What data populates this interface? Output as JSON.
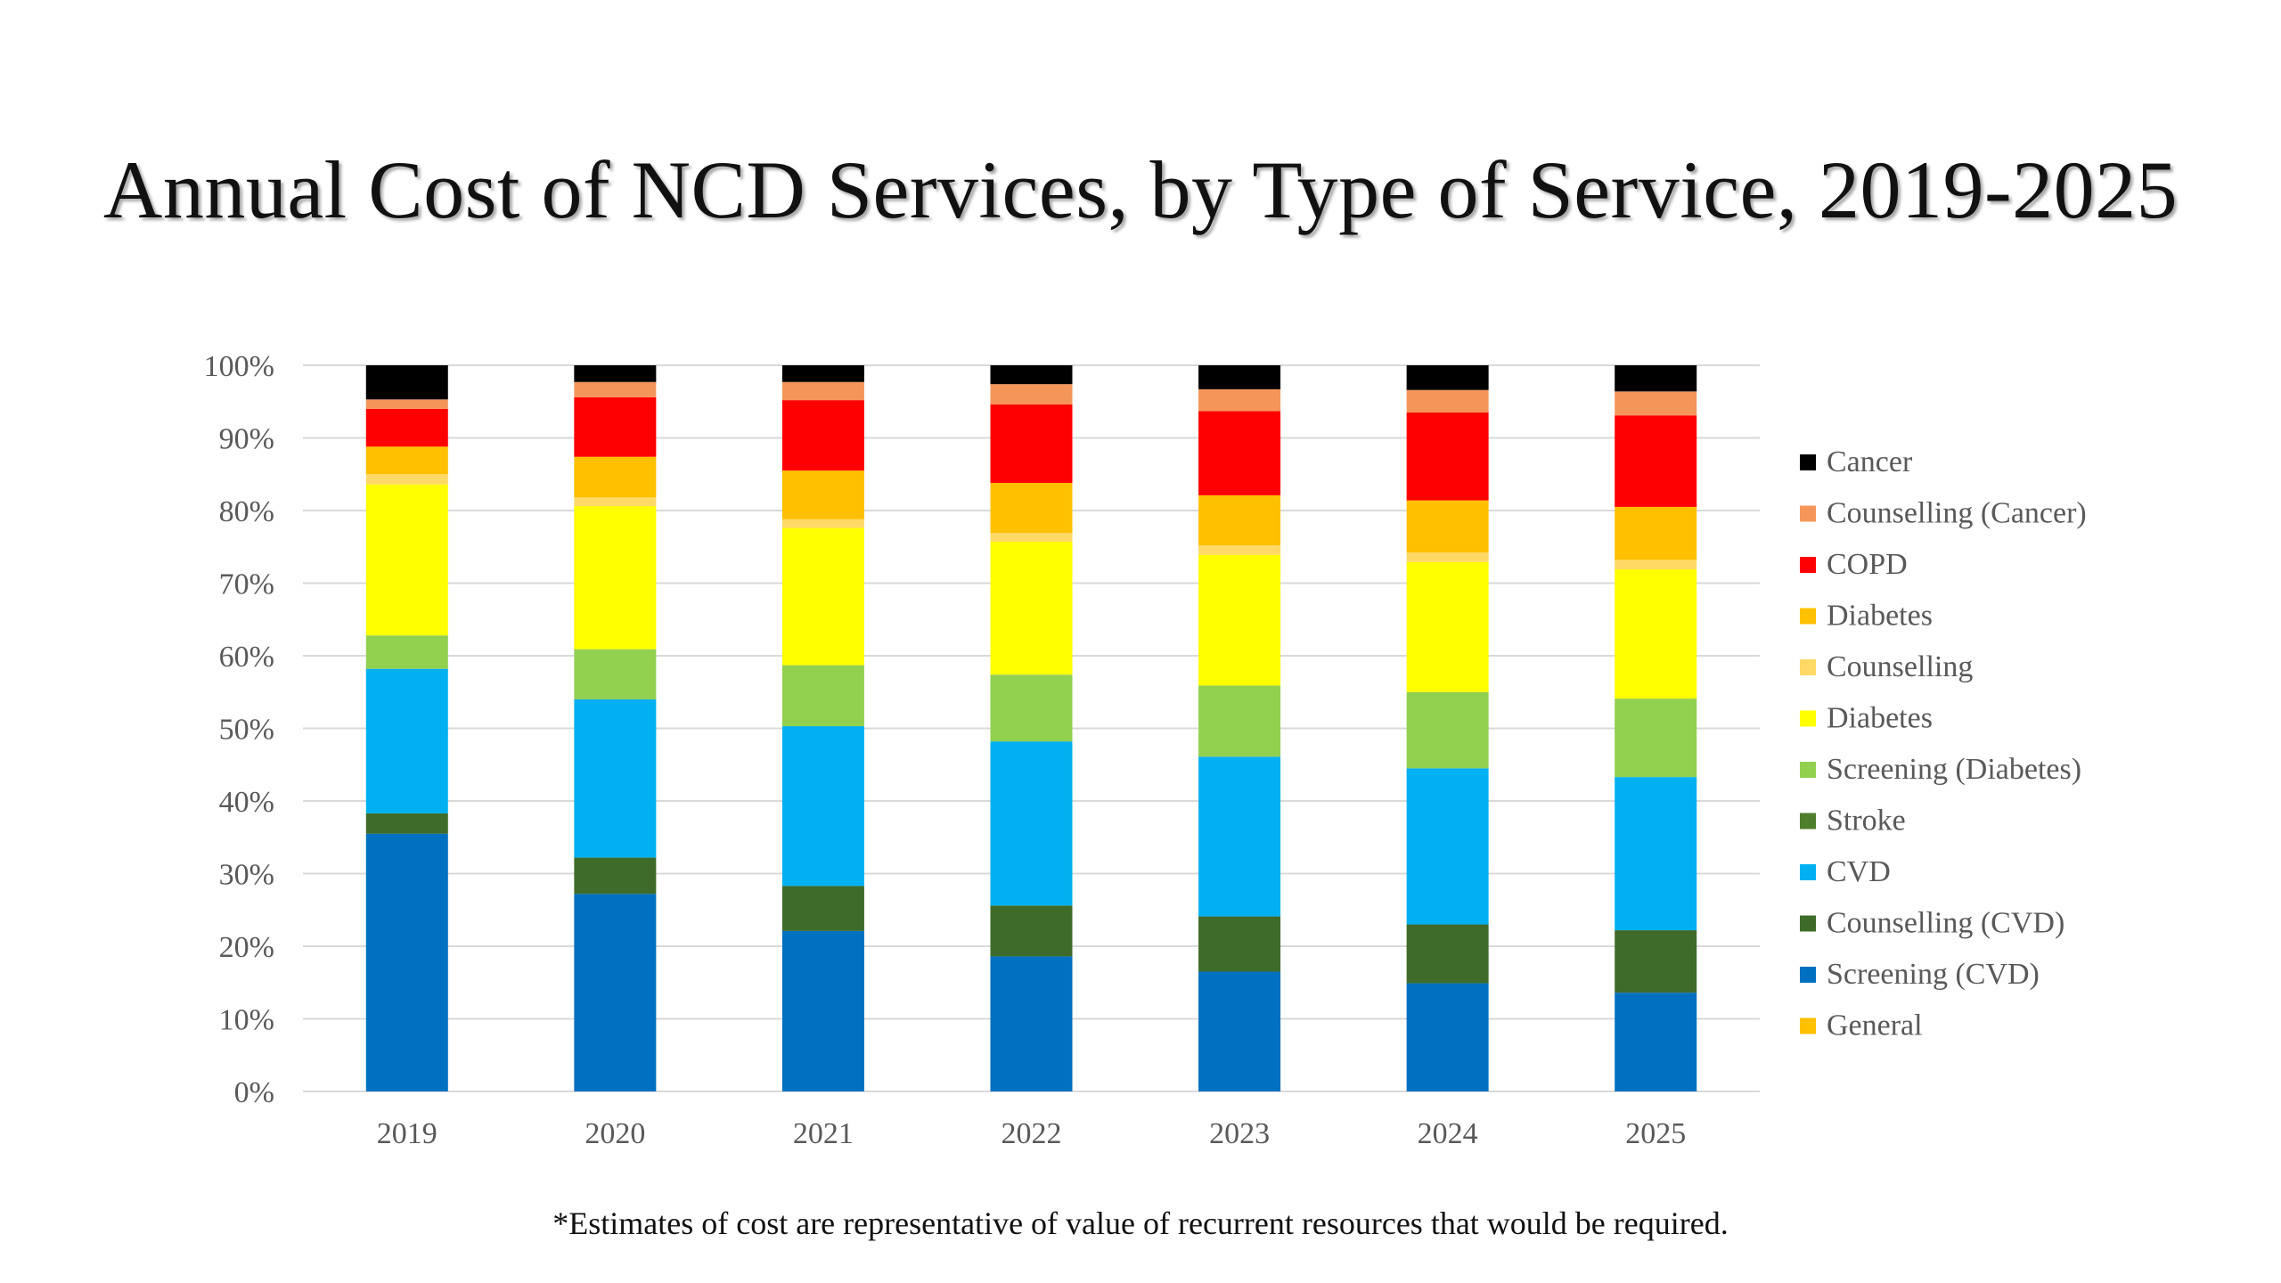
{
  "title": "Annual Cost of NCD Services, by Type of Service, 2019-2025",
  "footnote": "*Estimates of cost are representative of value of recurrent resources that would be required.",
  "chart_data": {
    "type": "bar",
    "stacked": true,
    "percent_stacked": true,
    "categories": [
      "2019",
      "2020",
      "2021",
      "2022",
      "2023",
      "2024",
      "2025"
    ],
    "ylim": [
      0,
      100
    ],
    "yticks": [
      "0%",
      "10%",
      "20%",
      "30%",
      "40%",
      "50%",
      "60%",
      "70%",
      "80%",
      "90%",
      "100%"
    ],
    "grid": true,
    "legend_position": "right",
    "series": [
      {
        "name": "General",
        "color": "#FFC000",
        "values": [
          0,
          0,
          0,
          0,
          0,
          0,
          0
        ]
      },
      {
        "name": "Screening (CVD)",
        "color": "#0070C0",
        "values": [
          35.5,
          27.2,
          22.1,
          18.6,
          16.5,
          14.9,
          13.6
        ]
      },
      {
        "name": "Counselling (CVD)",
        "color": "#3E6B2A",
        "values": [
          2.8,
          5.0,
          6.2,
          7.0,
          7.6,
          8.1,
          8.6
        ]
      },
      {
        "name": "CVD",
        "color": "#00B0F0",
        "values": [
          19.9,
          21.8,
          22.0,
          22.6,
          22.0,
          21.5,
          21.1
        ]
      },
      {
        "name": "Stroke",
        "color": "#4E7F2C",
        "values": [
          0,
          0,
          0,
          0,
          0,
          0,
          0
        ]
      },
      {
        "name": "Screening (Diabetes)",
        "color": "#92D050",
        "values": [
          4.6,
          6.9,
          8.4,
          9.2,
          9.8,
          10.5,
          10.8
        ]
      },
      {
        "name": "Diabetes",
        "color": "#FFFF00",
        "values": [
          20.8,
          19.7,
          18.9,
          18.3,
          18.0,
          17.9,
          17.8
        ]
      },
      {
        "name": "Counselling",
        "color": "#FFD966",
        "values": [
          1.4,
          1.2,
          1.2,
          1.2,
          1.3,
          1.3,
          1.3
        ]
      },
      {
        "name": "Diabetes",
        "color": "#FFC000",
        "values": [
          3.8,
          5.6,
          6.7,
          6.9,
          6.9,
          7.2,
          7.3
        ]
      },
      {
        "name": "COPD",
        "color": "#FF0000",
        "values": [
          5.2,
          8.2,
          9.7,
          10.8,
          11.6,
          12.1,
          12.6
        ]
      },
      {
        "name": "Counselling (Cancer)",
        "color": "#F4965A",
        "values": [
          1.3,
          2.1,
          2.5,
          2.8,
          3.0,
          3.1,
          3.3
        ]
      },
      {
        "name": "Cancer",
        "color": "#000000",
        "values": [
          4.7,
          2.3,
          2.3,
          2.6,
          3.3,
          3.4,
          3.6
        ]
      }
    ]
  }
}
